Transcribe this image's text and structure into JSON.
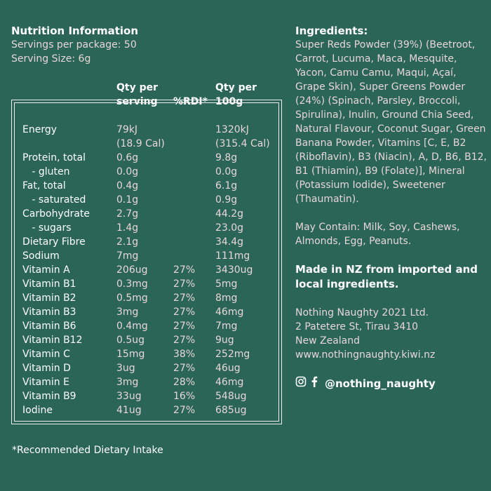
{
  "nutrition": {
    "title": "Nutrition Information",
    "servings_per_package": "Servings per package: 50",
    "serving_size": "Serving Size: 6g",
    "columns": {
      "per_serving_line1": "Qty per",
      "per_serving_line2": "serving",
      "rdi": "%RDI*",
      "per_100g_line1": "Qty per",
      "per_100g_line2": "100g"
    },
    "rows": [
      {
        "name": "Energy",
        "serving": "79kJ\n(18.9 Cal)",
        "rdi": "",
        "per100": "1320kJ\n(315.4 Cal)"
      },
      {
        "name": "Protein, total",
        "serving": "0.6g",
        "rdi": "",
        "per100": "9.8g"
      },
      {
        "name": "   - gluten",
        "serving": "0.0g",
        "rdi": "",
        "per100": "0.0g"
      },
      {
        "name": "Fat, total",
        "serving": "0.4g",
        "rdi": "",
        "per100": "6.1g"
      },
      {
        "name": "   - saturated",
        "serving": "0.1g",
        "rdi": "",
        "per100": "0.9g"
      },
      {
        "name": "Carbohydrate",
        "serving": "2.7g",
        "rdi": "",
        "per100": "44.2g"
      },
      {
        "name": "   - sugars",
        "serving": "1.4g",
        "rdi": "",
        "per100": "23.0g"
      },
      {
        "name": "Dietary Fibre",
        "serving": "2.1g",
        "rdi": "",
        "per100": "34.4g"
      },
      {
        "name": "Sodium",
        "serving": "7mg",
        "rdi": "",
        "per100": "111mg"
      },
      {
        "name": "Vitamin A",
        "serving": "206ug",
        "rdi": "27%",
        "per100": "3430ug"
      },
      {
        "name": "Vitamin B1",
        "serving": "0.3mg",
        "rdi": "27%",
        "per100": "5mg"
      },
      {
        "name": "Vitamin B2",
        "serving": "0.5mg",
        "rdi": "27%",
        "per100": "8mg"
      },
      {
        "name": "Vitamin B3",
        "serving": "3mg",
        "rdi": "27%",
        "per100": "46mg"
      },
      {
        "name": "Vitamin B6",
        "serving": "0.4mg",
        "rdi": "27%",
        "per100": "7mg"
      },
      {
        "name": "Vitamin B12",
        "serving": "0.5ug",
        "rdi": "27%",
        "per100": "9ug"
      },
      {
        "name": "Vitamin C",
        "serving": "15mg",
        "rdi": "38%",
        "per100": "252mg"
      },
      {
        "name": "Vitamin D",
        "serving": "3ug",
        "rdi": "27%",
        "per100": "46ug"
      },
      {
        "name": "Vitamin E",
        "serving": "3mg",
        "rdi": "28%",
        "per100": "46mg"
      },
      {
        "name": "Vitamin B9",
        "serving": "33ug",
        "rdi": "16%",
        "per100": "548ug"
      },
      {
        "name": "Iodine",
        "serving": "41ug",
        "rdi": "27%",
        "per100": "685ug"
      }
    ],
    "footnote": "*Recommended Dietary Intake"
  },
  "ingredients": {
    "title": "Ingredients:",
    "text": "Super Reds Powder (39%) (Beetroot, Carrot, Lucuma, Maca, Mesquite, Yacon, Camu Camu, Maqui, Açaí, Grape Skin), Super Greens Powder (24%) (Spinach, Parsley, Broccoli, Spirulina), Inulin, Ground Chia Seed, Natural Flavour, Coconut Sugar, Green Banana Powder, Vitamins [C, E, B2 (Riboflavin), B3 (Niacin), A, D, B6, B12, B1 (Thiamin), B9 (Folate)], Mineral (Potassium Iodide), Sweetener (Thaumatin).",
    "may_contain": "May Contain: Milk, Soy, Cashews, Almonds, Egg, Peanuts.",
    "origin": "Made in NZ from imported and local ingredients."
  },
  "company": {
    "name": "Nothing Naughty 2021 Ltd.",
    "address": "2 Patetere St, Tirau 3410",
    "country": "New Zealand",
    "website": "www.nothingnaughty.kiwi.nz",
    "social_handle": "@nothing_naughty",
    "social_icons": [
      "instagram-icon",
      "facebook-icon"
    ]
  },
  "colors": {
    "background": "#2b6557",
    "heading": "#ffffff",
    "value_text": "#e8d6d8",
    "border": "#f2eeee"
  }
}
